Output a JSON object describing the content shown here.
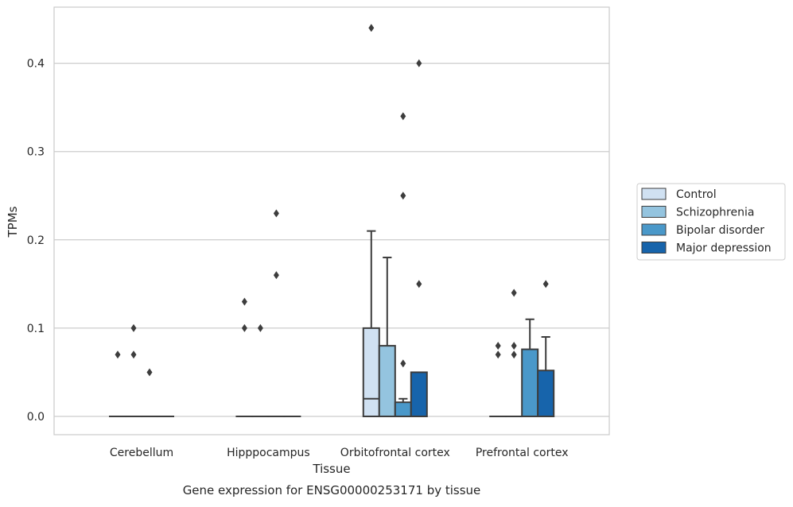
{
  "chart_data": {
    "type": "boxplot",
    "caption": "Gene expression for ENSG00000253171 by tissue",
    "xlabel": "Tissue",
    "ylabel": "TPMs",
    "ylim": [
      -0.021,
      0.465
    ],
    "yticks": [
      0.0,
      0.1,
      0.2,
      0.3,
      0.4
    ],
    "ytick_labels": [
      "0.0",
      "0.1",
      "0.2",
      "0.3",
      "0.4"
    ],
    "grid": "horizontal",
    "legend_position": "right",
    "categories": [
      "Cerebellum",
      "Hipppocampus",
      "Orbitofrontal cortex",
      "Prefrontal cortex"
    ],
    "series": [
      {
        "name": "Control",
        "color": "#d0e1f2",
        "boxes": [
          {
            "q1": 0.0,
            "median": 0.0,
            "q3": 0.0,
            "whisker_low": 0.0,
            "whisker_high": 0.0,
            "outliers": [
              0.07
            ]
          },
          {
            "q1": 0.0,
            "median": 0.0,
            "q3": 0.0,
            "whisker_low": 0.0,
            "whisker_high": 0.0,
            "outliers": [
              0.13,
              0.1
            ]
          },
          {
            "q1": 0.0,
            "median": 0.02,
            "q3": 0.1,
            "whisker_low": 0.0,
            "whisker_high": 0.21,
            "outliers": [
              0.44
            ]
          },
          {
            "q1": 0.0,
            "median": 0.0,
            "q3": 0.0,
            "whisker_low": 0.0,
            "whisker_high": 0.0,
            "outliers": [
              0.08,
              0.07
            ]
          }
        ]
      },
      {
        "name": "Schizophrenia",
        "color": "#94c4df",
        "boxes": [
          {
            "q1": 0.0,
            "median": 0.0,
            "q3": 0.0,
            "whisker_low": 0.0,
            "whisker_high": 0.0,
            "outliers": [
              0.1,
              0.07
            ]
          },
          {
            "q1": 0.0,
            "median": 0.0,
            "q3": 0.0,
            "whisker_low": 0.0,
            "whisker_high": 0.0,
            "outliers": [
              0.1
            ]
          },
          {
            "q1": 0.0,
            "median": 0.0,
            "q3": 0.08,
            "whisker_low": 0.0,
            "whisker_high": 0.18,
            "outliers": []
          },
          {
            "q1": 0.0,
            "median": 0.0,
            "q3": 0.0,
            "whisker_low": 0.0,
            "whisker_high": 0.0,
            "outliers": [
              0.14,
              0.08,
              0.07
            ]
          }
        ]
      },
      {
        "name": "Bipolar disorder",
        "color": "#4a98c9",
        "boxes": [
          {
            "q1": 0.0,
            "median": 0.0,
            "q3": 0.0,
            "whisker_low": 0.0,
            "whisker_high": 0.0,
            "outliers": [
              0.05
            ]
          },
          {
            "q1": 0.0,
            "median": 0.0,
            "q3": 0.0,
            "whisker_low": 0.0,
            "whisker_high": 0.0,
            "outliers": [
              0.23,
              0.16
            ]
          },
          {
            "q1": 0.0,
            "median": 0.0,
            "q3": 0.016,
            "whisker_low": 0.0,
            "whisker_high": 0.02,
            "outliers": [
              0.34,
              0.25,
              0.06
            ]
          },
          {
            "q1": 0.0,
            "median": 0.0,
            "q3": 0.076,
            "whisker_low": 0.0,
            "whisker_high": 0.11,
            "outliers": []
          }
        ]
      },
      {
        "name": "Major depression",
        "color": "#1764ab",
        "boxes": [
          {
            "q1": 0.0,
            "median": 0.0,
            "q3": 0.0,
            "whisker_low": 0.0,
            "whisker_high": 0.0,
            "outliers": []
          },
          {
            "q1": 0.0,
            "median": 0.0,
            "q3": 0.0,
            "whisker_low": 0.0,
            "whisker_high": 0.0,
            "outliers": []
          },
          {
            "q1": 0.0,
            "median": 0.0,
            "q3": 0.05,
            "whisker_low": 0.0,
            "whisker_high": 0.05,
            "outliers": [
              0.4,
              0.15
            ]
          },
          {
            "q1": 0.0,
            "median": 0.0,
            "q3": 0.052,
            "whisker_low": 0.0,
            "whisker_high": 0.09,
            "outliers": [
              0.15
            ]
          }
        ]
      }
    ]
  }
}
